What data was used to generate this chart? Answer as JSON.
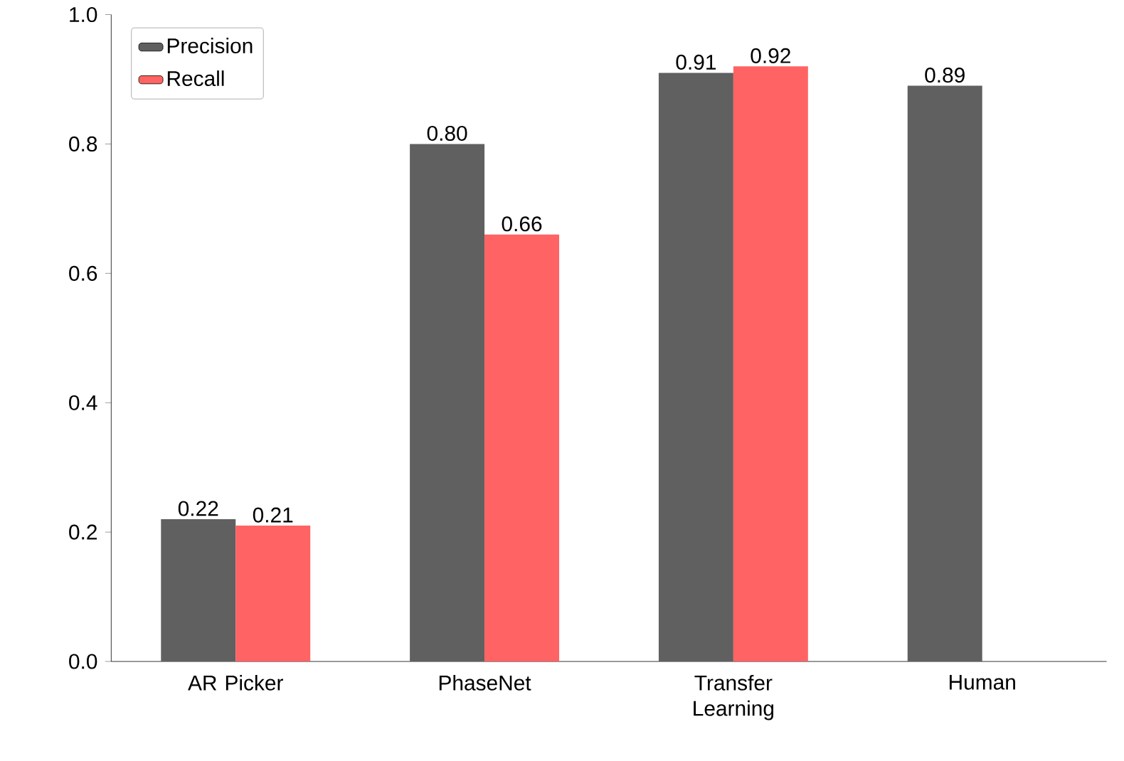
{
  "chart_data": {
    "type": "bar",
    "categories": [
      "AR Picker",
      "PhaseNet",
      "Transfer Learning",
      "Human"
    ],
    "series": [
      {
        "name": "Precision",
        "color": "#606060",
        "values": [
          0.22,
          0.8,
          0.91,
          0.89
        ],
        "value_labels": [
          "0.22",
          "0.80",
          "0.91",
          "0.89"
        ]
      },
      {
        "name": "Recall",
        "color": "#ff6363",
        "values": [
          0.21,
          0.66,
          0.92,
          null
        ],
        "value_labels": [
          "0.21",
          "0.66",
          "0.92",
          null
        ]
      }
    ],
    "ylim": [
      0,
      1.0
    ],
    "yticks": [
      {
        "value": 0,
        "label": "0.0"
      },
      0.2,
      0.4,
      0.6,
      0.8,
      {
        "value": 1,
        "label": "1.0"
      }
    ],
    "legend": "top left",
    "grid": false
  }
}
